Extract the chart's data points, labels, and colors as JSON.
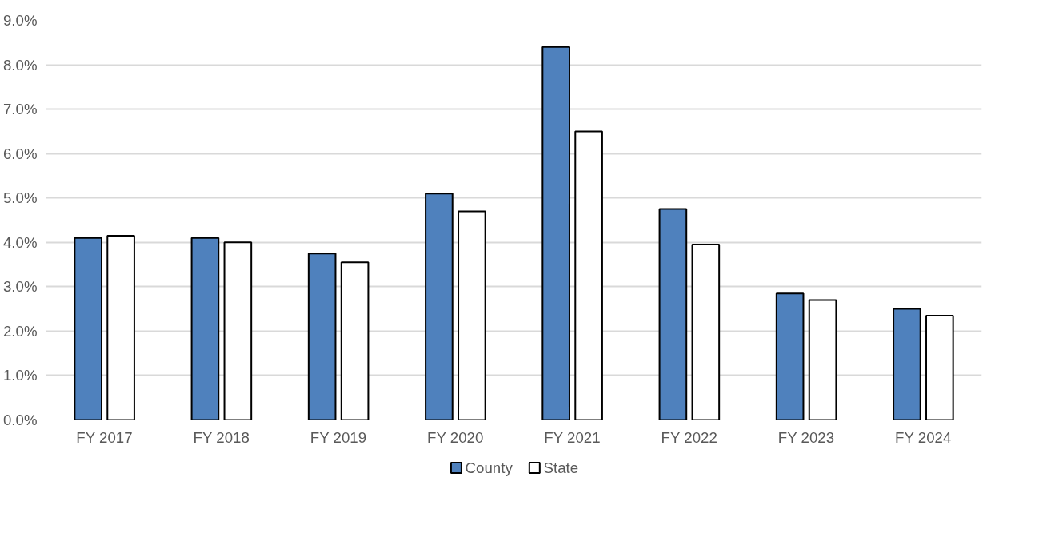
{
  "chart_data": {
    "type": "bar",
    "categories": [
      "FY 2017",
      "FY 2018",
      "FY 2019",
      "FY 2020",
      "FY 2021",
      "FY 2022",
      "FY 2023",
      "FY 2024"
    ],
    "series": [
      {
        "name": "County",
        "color": "#4f81bd",
        "values": [
          4.1,
          4.1,
          3.75,
          5.1,
          8.4,
          4.75,
          2.85,
          2.5
        ]
      },
      {
        "name": "State",
        "color": "#ffffff",
        "values": [
          4.15,
          4.0,
          3.55,
          4.7,
          6.5,
          3.95,
          2.7,
          2.35
        ]
      }
    ],
    "ylim": [
      0,
      9
    ],
    "yticks": [
      {
        "value": 0,
        "label": "0.0%"
      },
      {
        "value": 1,
        "label": "1.0%"
      },
      {
        "value": 2,
        "label": "2.0%"
      },
      {
        "value": 3,
        "label": "3.0%"
      },
      {
        "value": 4,
        "label": "4.0%"
      },
      {
        "value": 5,
        "label": "5.0%"
      },
      {
        "value": 6,
        "label": "6.0%"
      },
      {
        "value": 7,
        "label": "7.0%"
      },
      {
        "value": 8,
        "label": "8.0%"
      },
      {
        "value": 9,
        "label": "9.0%"
      }
    ],
    "grid": "y",
    "legend": "bottom"
  }
}
